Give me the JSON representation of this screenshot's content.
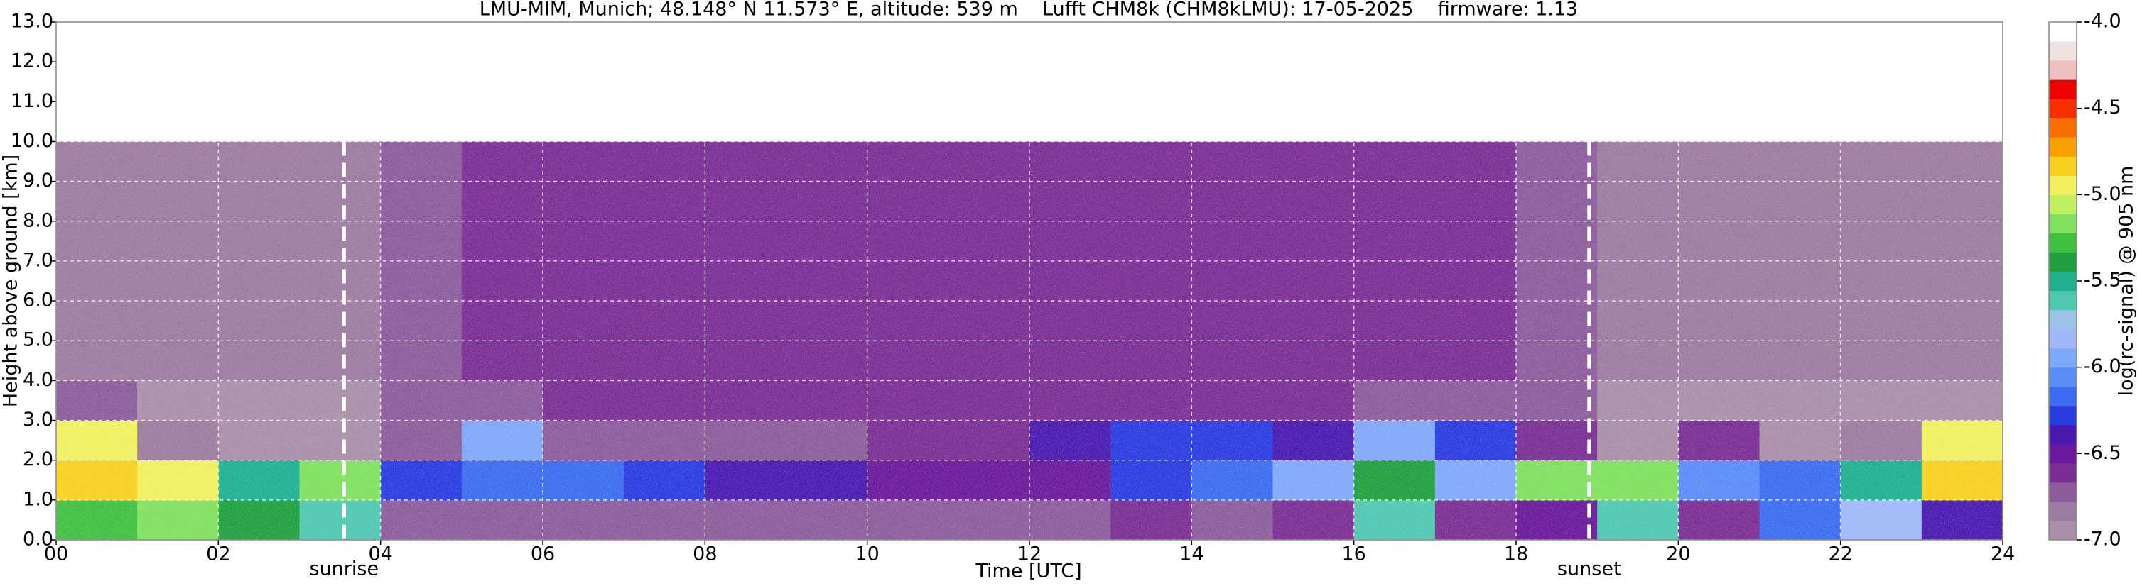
{
  "chart_data": {
    "type": "heatmap",
    "title": "LMU-MIM, Munich; 48.148° N 11.573° E, altitude: 539 m    Lufft CHM8k (CHM8kLMU): 17-05-2025    firmware: 1.13",
    "x_label": "Time [UTC]",
    "y_label": "Height above ground [km]",
    "colorbar_label": "log(rc-signal) @ 905 nm",
    "xlim": [
      0,
      24
    ],
    "ylim": [
      0,
      13
    ],
    "xticks": [
      {
        "value": 0,
        "label": "00"
      },
      {
        "value": 2,
        "label": "02"
      },
      {
        "value": 4,
        "label": "04"
      },
      {
        "value": 6,
        "label": "06"
      },
      {
        "value": 8,
        "label": "08"
      },
      10,
      12,
      14,
      16,
      18,
      20,
      22,
      24
    ],
    "yticks": [
      {
        "value": 0,
        "label": "0.0"
      },
      {
        "value": 1,
        "label": "1.0"
      },
      {
        "value": 2,
        "label": "2.0"
      },
      {
        "value": 3,
        "label": "3.0"
      },
      {
        "value": 4,
        "label": "4.0"
      },
      {
        "value": 5,
        "label": "5.0"
      },
      {
        "value": 6,
        "label": "6.0"
      },
      {
        "value": 7,
        "label": "7.0"
      },
      {
        "value": 8,
        "label": "8.0"
      },
      {
        "value": 9,
        "label": "9.0"
      },
      {
        "value": 10,
        "label": "10.0"
      },
      {
        "value": 11,
        "label": "11.0"
      },
      {
        "value": 12,
        "label": "12.0"
      },
      {
        "value": 13,
        "label": "13.0"
      }
    ],
    "grid": true,
    "clim": [
      -7,
      -4
    ],
    "cticks": [
      {
        "value": -7,
        "label": "-7.0"
      },
      -6.5,
      {
        "value": -6,
        "label": "-6.0"
      },
      -5.5,
      {
        "value": -5,
        "label": "-5.0"
      },
      -4.5,
      {
        "value": -4,
        "label": "-4.0"
      }
    ],
    "colormap": [
      "#a890a8",
      "#9c7ca0",
      "#8c5c9c",
      "#7a2f94",
      "#6a1a9a",
      "#4a1ab0",
      "#2a3ce0",
      "#3c6cf0",
      "#5a8cf8",
      "#80a8f8",
      "#a0b8f8",
      "#9cc4e8",
      "#50c8b0",
      "#20b090",
      "#20a040",
      "#40c040",
      "#80e060",
      "#c0f060",
      "#f0f060",
      "#f8d020",
      "#f8a000",
      "#f87000",
      "#f83000",
      "#f00000",
      "#f0c0c0",
      "#f0e0e0",
      "#ffffff"
    ],
    "x_bins": [
      0,
      1,
      2,
      3,
      4,
      5,
      6,
      7,
      8,
      9,
      10,
      11,
      12,
      13,
      14,
      15,
      16,
      17,
      18,
      19,
      20,
      21,
      22,
      23,
      24
    ],
    "y_bins": [
      0,
      1,
      2,
      3,
      4,
      5,
      6,
      7,
      8,
      9,
      10
    ],
    "z": [
      [
        -5.3,
        -5.2,
        -5.4,
        -5.6,
        -6.7,
        -6.7,
        -6.7,
        -6.7,
        -6.7,
        -6.7,
        -6.7,
        -6.7,
        -6.7,
        -6.6,
        -6.7,
        -6.6,
        -5.6,
        -6.6,
        -6.5,
        -5.6,
        -6.6,
        -6.2,
        -5.8,
        -6.4
      ],
      [
        -4.8,
        -4.9,
        -5.5,
        -5.2,
        -6.3,
        -6.2,
        -6.2,
        -6.3,
        -6.4,
        -6.4,
        -6.5,
        -6.5,
        -6.5,
        -6.3,
        -6.2,
        -6.0,
        -5.4,
        -6.0,
        -5.2,
        -5.2,
        -6.1,
        -6.2,
        -5.5,
        -4.8
      ],
      [
        -5.0,
        -6.8,
        -6.9,
        -6.9,
        -6.7,
        -6.0,
        -6.7,
        -6.7,
        -6.7,
        -6.7,
        -6.6,
        -6.6,
        -6.4,
        -6.3,
        -6.3,
        -6.4,
        -6.0,
        -6.3,
        -6.6,
        -6.9,
        -6.6,
        -6.9,
        -6.8,
        -4.9
      ],
      [
        -6.7,
        -6.9,
        -6.9,
        -6.9,
        -6.7,
        -6.7,
        -6.6,
        -6.6,
        -6.6,
        -6.6,
        -6.6,
        -6.6,
        -6.6,
        -6.6,
        -6.6,
        -6.6,
        -6.7,
        -6.7,
        -6.7,
        -6.9,
        -6.9,
        -6.9,
        -6.9,
        -6.9
      ],
      [
        -6.8,
        -6.8,
        -6.8,
        -6.8,
        -6.7,
        -6.6,
        -6.6,
        -6.6,
        -6.6,
        -6.6,
        -6.6,
        -6.6,
        -6.6,
        -6.6,
        -6.6,
        -6.6,
        -6.6,
        -6.6,
        -6.7,
        -6.8,
        -6.8,
        -6.8,
        -6.8,
        -6.8
      ],
      [
        -6.8,
        -6.8,
        -6.8,
        -6.8,
        -6.7,
        -6.6,
        -6.6,
        -6.6,
        -6.6,
        -6.6,
        -6.6,
        -6.6,
        -6.6,
        -6.6,
        -6.6,
        -6.6,
        -6.6,
        -6.6,
        -6.7,
        -6.8,
        -6.8,
        -6.8,
        -6.8,
        -6.8
      ],
      [
        -6.8,
        -6.8,
        -6.8,
        -6.8,
        -6.7,
        -6.6,
        -6.6,
        -6.6,
        -6.6,
        -6.6,
        -6.6,
        -6.6,
        -6.6,
        -6.6,
        -6.6,
        -6.6,
        -6.6,
        -6.6,
        -6.7,
        -6.8,
        -6.8,
        -6.8,
        -6.8,
        -6.8
      ],
      [
        -6.8,
        -6.8,
        -6.8,
        -6.8,
        -6.7,
        -6.6,
        -6.6,
        -6.6,
        -6.6,
        -6.6,
        -6.6,
        -6.6,
        -6.6,
        -6.6,
        -6.6,
        -6.6,
        -6.6,
        -6.6,
        -6.7,
        -6.8,
        -6.8,
        -6.8,
        -6.8,
        -6.8
      ],
      [
        -6.8,
        -6.8,
        -6.8,
        -6.8,
        -6.7,
        -6.6,
        -6.6,
        -6.6,
        -6.6,
        -6.6,
        -6.6,
        -6.6,
        -6.6,
        -6.6,
        -6.6,
        -6.6,
        -6.6,
        -6.6,
        -6.7,
        -6.8,
        -6.8,
        -6.8,
        -6.8,
        -6.8
      ],
      [
        -6.8,
        -6.8,
        -6.8,
        -6.8,
        -6.7,
        -6.6,
        -6.6,
        -6.6,
        -6.6,
        -6.6,
        -6.6,
        -6.6,
        -6.6,
        -6.6,
        -6.6,
        -6.6,
        -6.6,
        -6.6,
        -6.7,
        -6.8,
        -6.8,
        -6.8,
        -6.8,
        -6.8
      ]
    ],
    "annotations": [
      {
        "label": "sunrise",
        "x": 3.55
      },
      {
        "label": "sunset",
        "x": 18.9
      }
    ]
  }
}
